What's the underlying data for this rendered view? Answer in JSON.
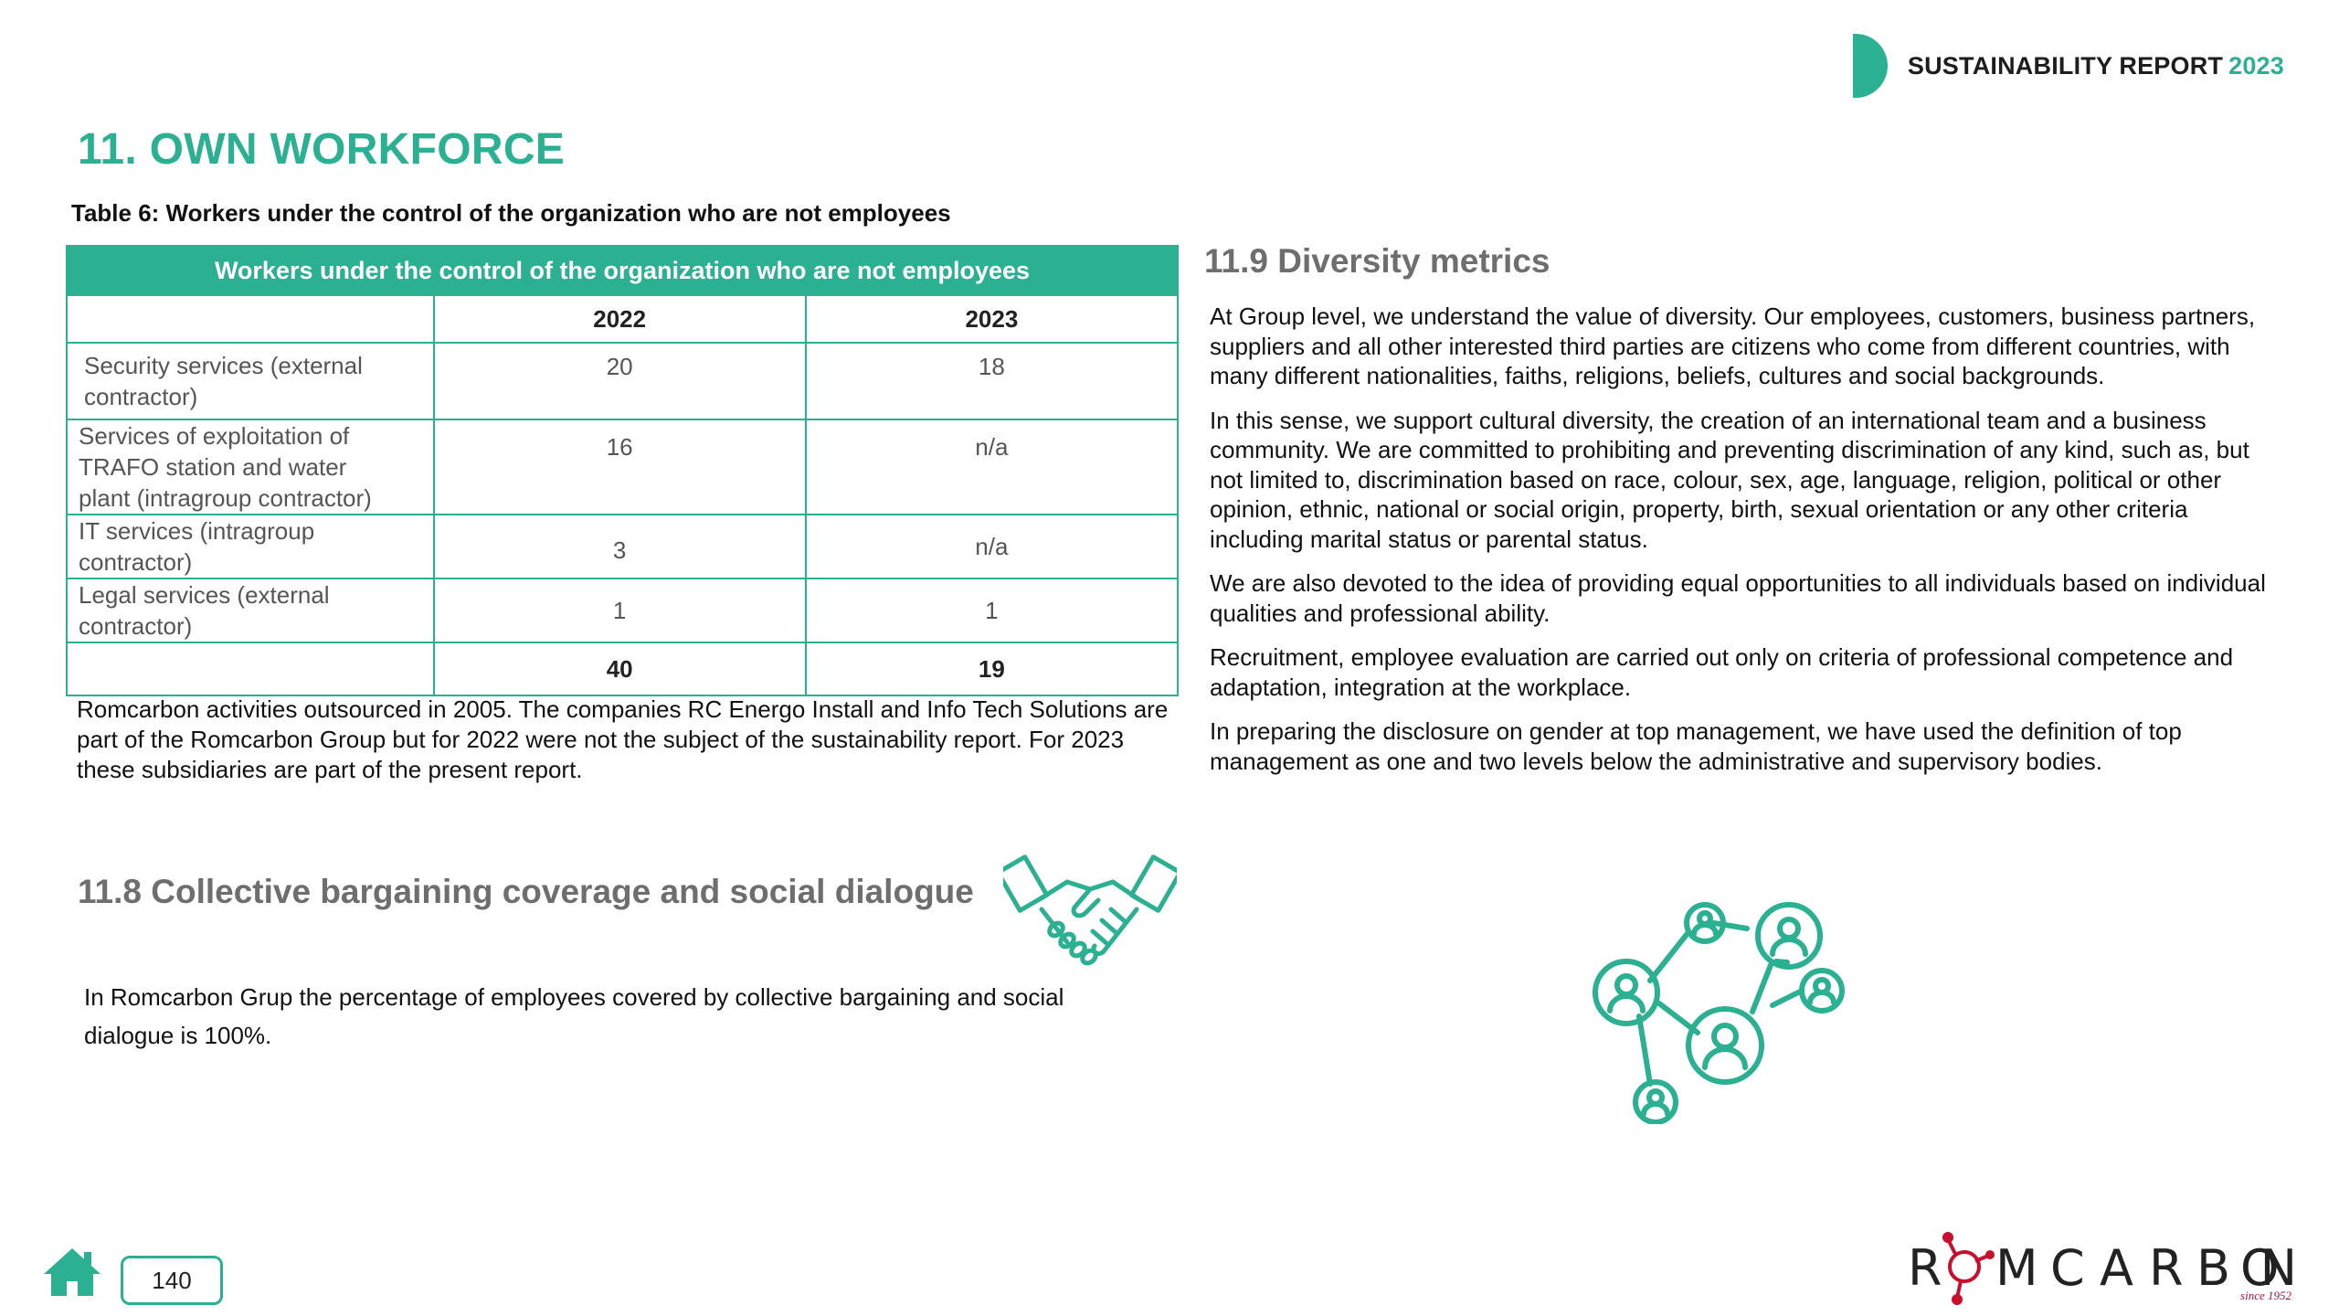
{
  "header": {
    "report_title": "SUSTAINABILITY REPORT",
    "report_year": "2023"
  },
  "section": {
    "title": "11. OWN WORKFORCE"
  },
  "table": {
    "caption": "Table 6: Workers under the control of the organization who are not employees",
    "header": "Workers under the control of the organization who are not employees",
    "years": [
      "2022",
      "2023"
    ],
    "rows": [
      {
        "label": "Security services (external contractor)",
        "y2022": "20",
        "y2023": "18"
      },
      {
        "label": "Services of exploitation of TRAFO station and water plant (intragroup contractor)",
        "y2022": "16",
        "y2023": "n/a"
      },
      {
        "label": "IT services (intragroup contractor)",
        "y2022": "3",
        "y2023": "n/a"
      },
      {
        "label": "Legal services (external contractor)",
        "y2022": "1",
        "y2023": "1"
      }
    ],
    "total": {
      "y2022": "40",
      "y2023": "19"
    },
    "note": "Romcarbon activities outsourced in 2005. The companies RC Energo Install and Info Tech Solutions are part of the Romcarbon Group but for 2022 were not the subject of the sustainability report. For 2023 these subsidiaries are part of the present report."
  },
  "bargaining": {
    "title": "11.8 Collective bargaining coverage and social dialogue",
    "text": "In Romcarbon Grup the percentage of employees covered by collective bargaining and social dialogue is 100%."
  },
  "diversity": {
    "title": "11.9 Diversity metrics",
    "paragraphs": [
      "At Group level, we understand the value of diversity. Our employees, customers, business partners, suppliers and all other interested third parties are citizens who come from different countries, with many different nationalities, faiths, religions, beliefs, cultures and social backgrounds.",
      "In this sense, we support cultural diversity, the creation of an international team and a business community. We are committed to prohibiting and preventing discrimination of any kind, such as, but not limited to, discrimination based on race, colour, sex, age, language, religion, political or other opinion, ethnic, national or social origin, property, birth, sexual orientation or any other criteria including marital status or parental status.",
      "We are also devoted to the idea of providing equal opportunities to all individuals based on individual qualities and professional ability.",
      "Recruitment, employee evaluation are carried out only on criteria of professional competence and adaptation, integration at the workplace.",
      "In preparing the disclosure on gender at top management, we have used the definition of top management as one and two levels below the administrative and supervisory bodies."
    ]
  },
  "footer": {
    "page_number": "140",
    "logo_text": "ROMCARBON",
    "logo_since": "since 1952"
  },
  "colors": {
    "accent": "#2bb092",
    "subheading": "#6e6e6e",
    "logo_red": "#c8102e"
  },
  "icons": [
    "home-icon",
    "handshake-icon",
    "people-network-icon"
  ]
}
